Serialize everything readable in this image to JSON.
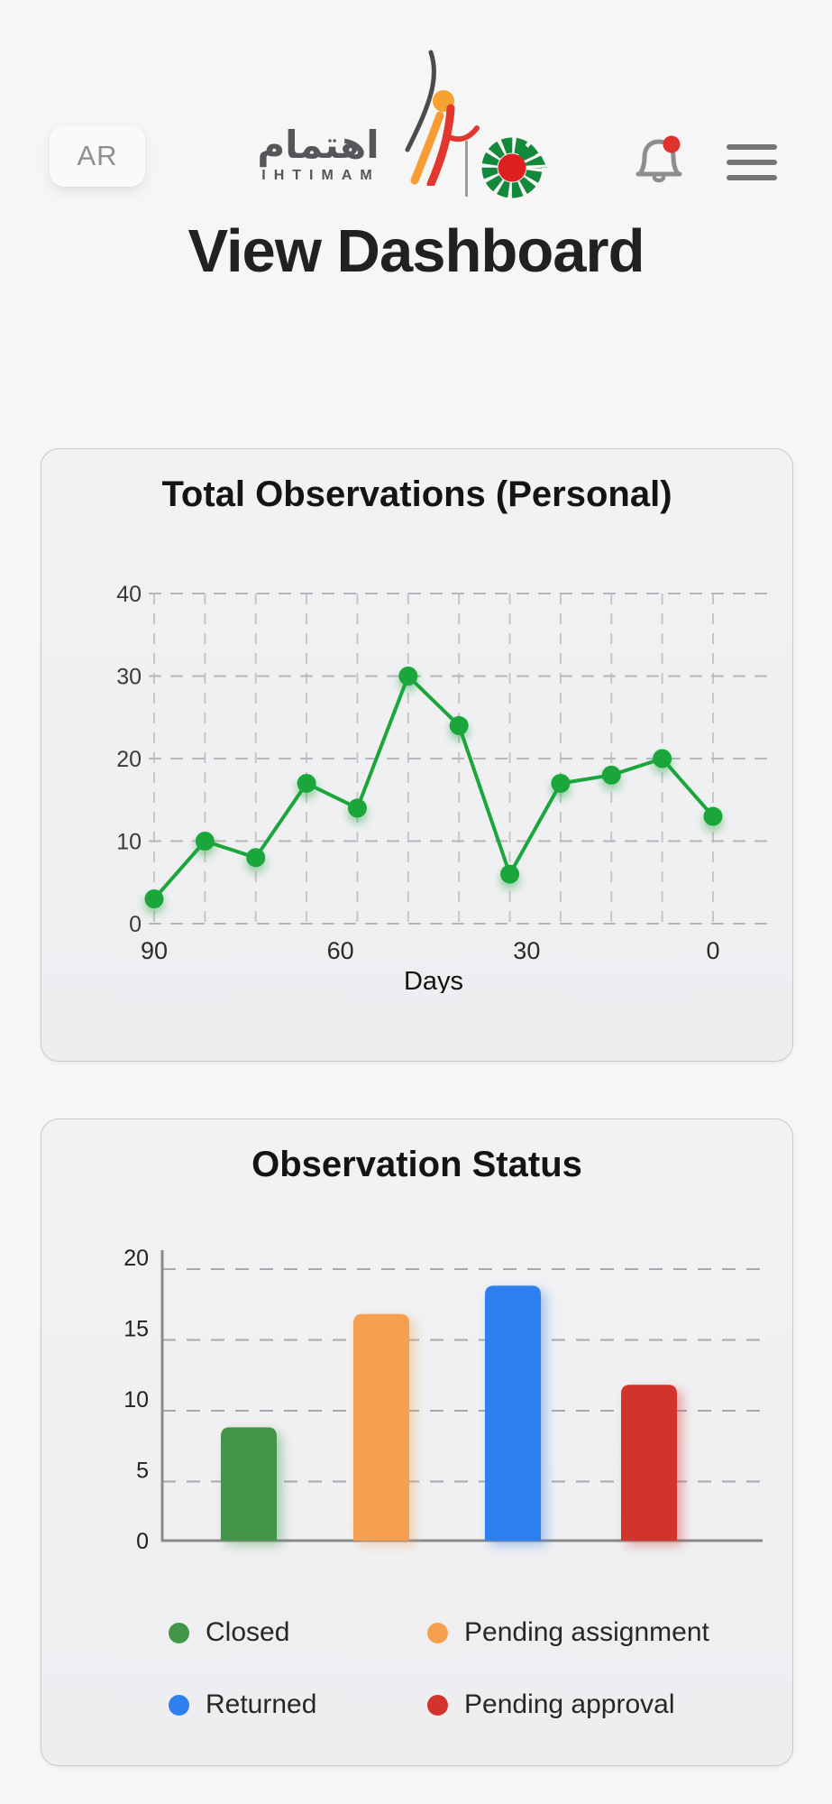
{
  "header": {
    "lang_button": "AR",
    "brand_arabic": "اهتمام",
    "brand_latin": "IHTIMAM",
    "has_notification_badge": true,
    "badge_color": "#e0312b",
    "icon_gray": "#8d8d90"
  },
  "page_title": "View Dashboard",
  "chart_data": [
    {
      "type": "line",
      "title": "Total Observations (Personal)",
      "xlabel": "Days",
      "x": [
        90,
        81.8,
        73.6,
        65.5,
        57.3,
        49.1,
        40.9,
        32.7,
        24.5,
        16.4,
        8.2,
        0
      ],
      "values": [
        3,
        10,
        8,
        17,
        14,
        30,
        24,
        6,
        17,
        18,
        20,
        13
      ],
      "x_tick_labels": [
        "90",
        "60",
        "30",
        "0"
      ],
      "y_ticks": [
        0,
        10,
        20,
        30,
        40
      ],
      "ylim": [
        0,
        40
      ],
      "line_color": "#1ba63c",
      "grid": "dashed-both",
      "legend_position": "none"
    },
    {
      "type": "bar",
      "title": "Observation Status",
      "categories": [
        "Closed",
        "Pending assignment",
        "Returned",
        "Pending approval"
      ],
      "values": [
        8,
        16,
        18,
        11
      ],
      "colors": [
        "#43954a",
        "#f5a050",
        "#2e7ff0",
        "#d2342b"
      ],
      "y_ticks": [
        0,
        5,
        10,
        15,
        20
      ],
      "ylim": [
        0,
        20
      ],
      "grid": "dashed-horizontal",
      "legend_position": "bottom"
    }
  ]
}
